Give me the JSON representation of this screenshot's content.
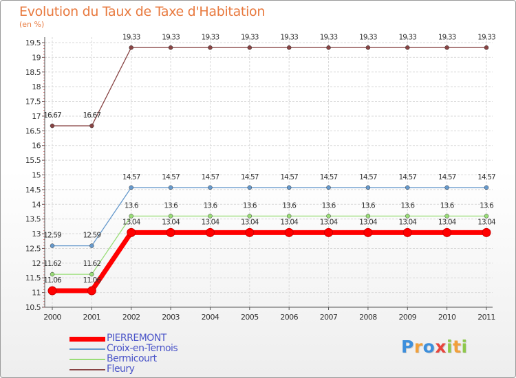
{
  "title": "Evolution du Taux de Taxe d'Habitation",
  "unit_label": "(en %)",
  "colors": {
    "title": "#e8793e",
    "axis": "#555555",
    "grid": "#d8d8d8",
    "legend_text": "#4a54c8"
  },
  "chart_data": {
    "type": "line",
    "title": "Evolution du Taux de Taxe d'Habitation",
    "xlabel": "",
    "ylabel": "(en %)",
    "ylim": [
      10.5,
      19.5
    ],
    "y_ticks": [
      "10.5",
      "11",
      "11.5",
      "12",
      "12.5",
      "13",
      "13.5",
      "14",
      "14.5",
      "15",
      "15.5",
      "16",
      "16.5",
      "17",
      "17.5",
      "18",
      "18.5",
      "19",
      "19.5"
    ],
    "categories": [
      "2000",
      "2001",
      "2002",
      "2003",
      "2004",
      "2005",
      "2006",
      "2007",
      "2008",
      "2009",
      "2010",
      "2011"
    ],
    "series": [
      {
        "name": "PIERREMONT",
        "color": "#ff0000",
        "values": [
          11.06,
          11.06,
          13.04,
          13.04,
          13.04,
          13.04,
          13.04,
          13.04,
          13.04,
          13.04,
          13.04,
          13.04
        ],
        "labels": [
          "11.06",
          "11.06",
          "13.04",
          "13.04",
          "13.04",
          "13.04",
          "13.04",
          "13.04",
          "13.04",
          "13.04",
          "13.04",
          "13.04"
        ]
      },
      {
        "name": "Croix-en-Ternois",
        "color": "#6699cc",
        "values": [
          12.59,
          12.59,
          14.57,
          14.57,
          14.57,
          14.57,
          14.57,
          14.57,
          14.57,
          14.57,
          14.57,
          14.57
        ],
        "labels": [
          "12.59",
          "12.59",
          "14.57",
          "14.57",
          "14.57",
          "14.57",
          "14.57",
          "14.57",
          "14.57",
          "14.57",
          "14.57",
          "14.57"
        ]
      },
      {
        "name": "Bermicourt",
        "color": "#99dd77",
        "values": [
          11.62,
          11.62,
          13.6,
          13.6,
          13.6,
          13.6,
          13.6,
          13.6,
          13.6,
          13.6,
          13.6,
          13.6
        ],
        "labels": [
          "11.62",
          "11.62",
          "13.6",
          "13.6",
          "13.6",
          "13.6",
          "13.6",
          "13.6",
          "13.6",
          "13.6",
          "13.6",
          "13.6"
        ]
      },
      {
        "name": "Fleury",
        "color": "#884444",
        "values": [
          16.67,
          16.67,
          19.33,
          19.33,
          19.33,
          19.33,
          19.33,
          19.33,
          19.33,
          19.33,
          19.33,
          19.33
        ],
        "labels": [
          "16.67",
          "16.67",
          "19.33",
          "19.33",
          "19.33",
          "19.33",
          "19.33",
          "19.33",
          "19.33",
          "19.33",
          "19.33",
          "19.33"
        ]
      }
    ],
    "legend": [
      "PIERREMONT",
      "Croix-en-Ternois",
      "Bermicourt",
      "Fleury"
    ],
    "legend_position": "bottom-left",
    "grid": true
  },
  "logo": {
    "text": "Proxiti",
    "letter_colors": [
      "#3d8fdc",
      "#f2a03a",
      "#3d8fdc",
      "#e8453c",
      "#8ec84a",
      "#f2a03a",
      "#8ec84a"
    ]
  }
}
